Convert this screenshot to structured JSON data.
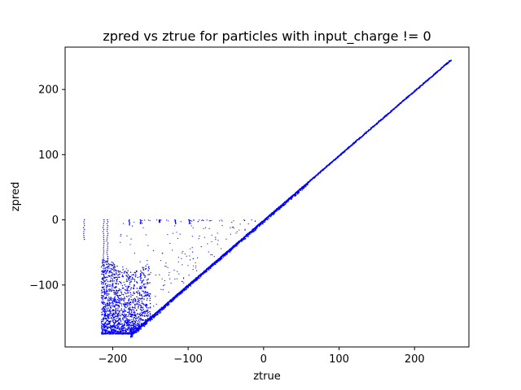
{
  "chart_data": {
    "type": "scatter",
    "title": "zpred vs ztrue for particles with input_charge != 0",
    "xlabel": "ztrue",
    "ylabel": "zpred",
    "xlim": [
      -263,
      272
    ],
    "ylim": [
      -195,
      265
    ],
    "xticks": [
      -200,
      -100,
      0,
      100,
      200
    ],
    "yticks": [
      -100,
      0,
      100,
      200
    ],
    "xtick_labels": [
      "−200",
      "−100",
      "0",
      "100",
      "200"
    ],
    "ytick_labels": [
      "−100",
      "0",
      "100",
      "200"
    ],
    "grid": false,
    "color": "#0000ff",
    "marker": "dot",
    "diagonal": {
      "from": [
        -175,
        -175
      ],
      "to": [
        248,
        245
      ]
    },
    "vertical_streaks": [
      {
        "x": -238,
        "y_top": 0,
        "y_bottom": -30
      },
      {
        "x": -212,
        "y_top": 0,
        "y_bottom": -90
      },
      {
        "x": -207,
        "y_top": 0,
        "y_bottom": -80
      },
      {
        "x": -178,
        "y_top": 0,
        "y_bottom": -8
      },
      {
        "x": -163,
        "y_top": 0,
        "y_bottom": -6
      },
      {
        "x": -138,
        "y_top": 0,
        "y_bottom": -4
      },
      {
        "x": -117,
        "y_top": 0,
        "y_bottom": -6
      },
      {
        "x": -98,
        "y_top": 0,
        "y_bottom": -6
      }
    ],
    "dense_cluster": {
      "x_range": [
        -215,
        -150
      ],
      "y_range": [
        -175,
        -60
      ],
      "apex": [
        -175,
        -175
      ]
    },
    "sparse_region": {
      "x_range": [
        -190,
        -5
      ],
      "y_range": [
        -170,
        0
      ]
    }
  }
}
